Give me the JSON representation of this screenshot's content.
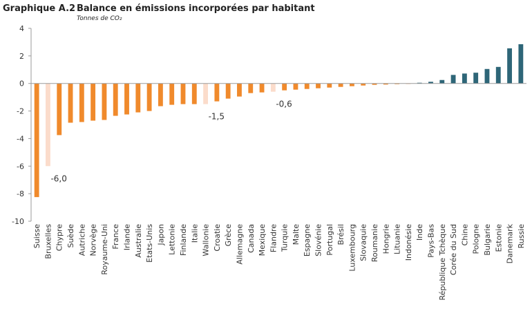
{
  "header": {
    "number": "Graphique A.2",
    "title": "Balance en émissions incorporées par habitant",
    "units": "Tonnes de CO₂"
  },
  "chart_data": {
    "type": "bar",
    "title": "Balance en émissions incorporées par habitant",
    "ylabel": "Tonnes de CO₂",
    "xlabel": "",
    "ylim": [
      -10,
      4
    ],
    "yticks": [
      4,
      2,
      0,
      -2,
      -4,
      -6,
      -8,
      -10
    ],
    "grid": false,
    "colors": {
      "negative": "#f08a2c",
      "highlight": "#fbdccb",
      "positive": "#2e6678"
    },
    "categories": [
      "Suisse",
      "Bruxelles",
      "Chypre",
      "Suède",
      "Autriche",
      "Norvège",
      "Royaume-Uni",
      "France",
      "Irlande",
      "Australie",
      "Etats-Unis",
      "Japon",
      "Lettonie",
      "Finlande",
      "Italie",
      "Wallonie",
      "Croatie",
      "Grèce",
      "Allemagne",
      "Canada",
      "Mexique",
      "Flandre",
      "Turquie",
      "Malte",
      "Espagne",
      "Slovénie",
      "Portugal",
      "Brésil",
      "Luxembourg",
      "Slovaquie",
      "Roumanie",
      "Hongrie",
      "Lituanie",
      "Indonésie",
      "Inde",
      "Pays-Bas",
      "République Tchèque",
      "Corée du Sud",
      "Chine",
      "Pologne",
      "Bulgarie",
      "Estonie",
      "Danemark",
      "Russie"
    ],
    "values": [
      -8.25,
      -6.0,
      -3.75,
      -2.85,
      -2.8,
      -2.7,
      -2.65,
      -2.35,
      -2.25,
      -2.1,
      -2.0,
      -1.65,
      -1.55,
      -1.5,
      -1.5,
      -1.5,
      -1.3,
      -1.1,
      -0.95,
      -0.7,
      -0.65,
      -0.6,
      -0.5,
      -0.45,
      -0.4,
      -0.35,
      -0.3,
      -0.25,
      -0.2,
      -0.15,
      -0.1,
      -0.08,
      -0.05,
      -0.03,
      0.05,
      0.12,
      0.25,
      0.62,
      0.72,
      0.78,
      1.05,
      1.2,
      2.55,
      2.85
    ],
    "highlighted": [
      "Bruxelles",
      "Wallonie",
      "Flandre"
    ],
    "data_labels": [
      {
        "category": "Bruxelles",
        "text": "-6,0"
      },
      {
        "category": "Wallonie",
        "text": "-1,5"
      },
      {
        "category": "Flandre",
        "text": "-0,6"
      }
    ]
  }
}
